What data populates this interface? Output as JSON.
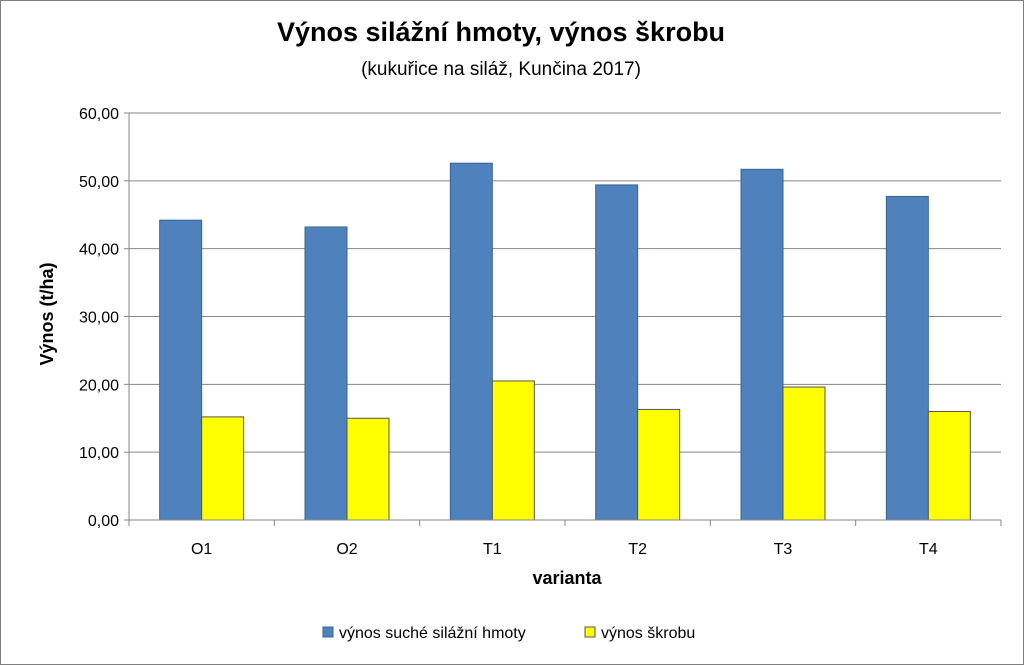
{
  "chart_data": {
    "type": "bar",
    "title": "Výnos silážní hmoty, výnos škrobu",
    "subtitle": "(kukuřice na siláž, Kunčina 2017)",
    "xlabel": "varianta",
    "ylabel": "Výnos (t/ha)",
    "categories": [
      "O1",
      "O2",
      "T1",
      "T2",
      "T3",
      "T4"
    ],
    "series": [
      {
        "name": "výnos suché silážní hmoty",
        "color": "#4f81bd",
        "values": [
          44.2,
          43.2,
          52.6,
          49.4,
          51.7,
          47.7
        ]
      },
      {
        "name": "výnos škrobu",
        "color": "#ffff00",
        "values": [
          15.2,
          15.0,
          20.5,
          16.3,
          19.6,
          16.0
        ]
      }
    ],
    "ylim": [
      0,
      60
    ],
    "yticks": [
      0,
      10,
      20,
      30,
      40,
      50,
      60
    ],
    "ytick_labels": [
      "0,00",
      "10,00",
      "20,00",
      "30,00",
      "40,00",
      "50,00",
      "60,00"
    ],
    "grid": true,
    "legend_position": "bottom"
  }
}
